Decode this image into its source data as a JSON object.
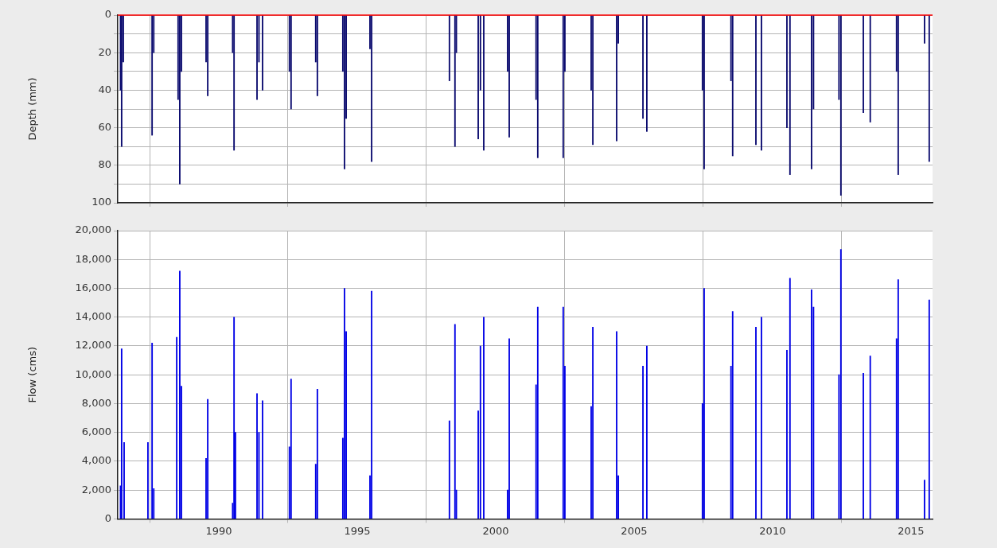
{
  "chart_data": [
    {
      "type": "bar",
      "ylabel": "Depth (mm)",
      "xlim": [
        1986.35,
        2015.78
      ],
      "xticks": [
        1990,
        1995,
        2000,
        2005,
        2010,
        2015
      ],
      "ylim": [
        100,
        0
      ],
      "yticks": [
        0,
        {
          "value": 10,
          "label": null
        },
        20,
        {
          "value": 30,
          "label": null
        },
        40,
        {
          "value": 50,
          "label": null
        },
        60,
        {
          "value": 70,
          "label": null
        },
        80,
        {
          "value": 90,
          "label": null
        },
        100
      ],
      "grid": true,
      "tick_labels": "y",
      "ref_lines": [
        {
          "axis": "y",
          "value": 0,
          "color": "#ff0000"
        }
      ],
      "series": [
        {
          "color": "#0a0a6e",
          "x": [
            1986.45,
            1986.49,
            1986.55,
            1987.59,
            1987.65,
            1988.53,
            1988.59,
            1988.65,
            1989.54,
            1989.6,
            1990.5,
            1990.55,
            1991.38,
            1991.45,
            1991.58,
            1992.55,
            1992.61,
            1993.5,
            1993.56,
            1994.48,
            1994.54,
            1994.6,
            1995.46,
            1995.52,
            1998.33,
            1998.53,
            1998.58,
            1999.37,
            1999.45,
            1999.57,
            2000.43,
            2000.49,
            2001.46,
            2001.52,
            2002.44,
            2002.5,
            2003.45,
            2003.51,
            2004.37,
            2004.43,
            2005.32,
            2005.46,
            2007.47,
            2007.53,
            2008.5,
            2008.56,
            2009.4,
            2009.6,
            2010.52,
            2010.63,
            2011.41,
            2011.48,
            2012.4,
            2012.47,
            2013.28,
            2013.53,
            2014.48,
            2014.54,
            2015.49,
            2015.66
          ],
          "values": [
            40,
            70,
            25,
            64,
            20,
            45,
            90,
            30,
            25,
            43,
            20,
            72,
            45,
            25,
            40,
            30,
            50,
            25,
            43,
            30,
            82,
            55,
            18,
            78,
            35,
            70,
            20,
            66,
            40,
            72,
            30,
            65,
            45,
            76,
            76,
            30,
            40,
            69,
            67,
            15,
            55,
            62,
            40,
            82,
            35,
            75,
            69,
            72,
            60,
            85,
            82,
            50,
            45,
            96,
            52,
            57,
            30,
            85,
            15,
            78
          ]
        }
      ]
    },
    {
      "type": "bar",
      "ylabel": "Flow (cms)",
      "xlim": [
        1986.35,
        2015.78
      ],
      "xticks": [
        1990,
        1995,
        2000,
        2005,
        2010,
        2015
      ],
      "ylim": [
        0,
        20000
      ],
      "yticks": [
        0,
        {
          "value": 2000,
          "label": "2,000"
        },
        {
          "value": 4000,
          "label": "4,000"
        },
        {
          "value": 6000,
          "label": "6,000"
        },
        {
          "value": 8000,
          "label": "8,000"
        },
        {
          "value": 10000,
          "label": "10,000"
        },
        {
          "value": 12000,
          "label": "12,000"
        },
        {
          "value": 14000,
          "label": "14,000"
        },
        {
          "value": 16000,
          "label": "16,000"
        },
        {
          "value": 18000,
          "label": "18,000"
        },
        {
          "value": 20000,
          "label": "20,000"
        }
      ],
      "grid": true,
      "series": [
        {
          "color": "#0000e6",
          "x": [
            1986.45,
            1986.49,
            1986.58,
            1987.44,
            1987.59,
            1987.65,
            1988.48,
            1988.59,
            1988.65,
            1989.54,
            1989.6,
            1990.5,
            1990.55,
            1990.6,
            1991.38,
            1991.45,
            1991.58,
            1992.55,
            1992.61,
            1993.5,
            1993.56,
            1994.48,
            1994.54,
            1994.6,
            1995.46,
            1995.52,
            1998.33,
            1998.53,
            1998.58,
            1999.37,
            1999.45,
            1999.57,
            2000.43,
            2000.49,
            2001.46,
            2001.52,
            2002.44,
            2002.5,
            2003.45,
            2003.51,
            2004.37,
            2004.43,
            2005.32,
            2005.46,
            2007.47,
            2007.53,
            2008.5,
            2008.56,
            2009.4,
            2009.6,
            2010.52,
            2010.63,
            2011.41,
            2011.48,
            2012.4,
            2012.47,
            2013.28,
            2013.53,
            2014.48,
            2014.54,
            2015.49,
            2015.66
          ],
          "values": [
            2300,
            11800,
            5300,
            5300,
            12200,
            2100,
            12600,
            17200,
            9200,
            4200,
            8300,
            1100,
            14000,
            6000,
            8700,
            6000,
            8200,
            5000,
            9700,
            3800,
            9000,
            5600,
            16000,
            13000,
            3000,
            15800,
            6800,
            13500,
            2000,
            7500,
            12000,
            14000,
            2000,
            12500,
            9300,
            14700,
            14700,
            10600,
            7800,
            13300,
            13000,
            3000,
            10600,
            12000,
            8000,
            16000,
            10600,
            14400,
            13300,
            14000,
            11700,
            16700,
            15900,
            14700,
            10000,
            18700,
            10100,
            11300,
            12500,
            16600,
            2700,
            15200
          ]
        }
      ]
    }
  ]
}
